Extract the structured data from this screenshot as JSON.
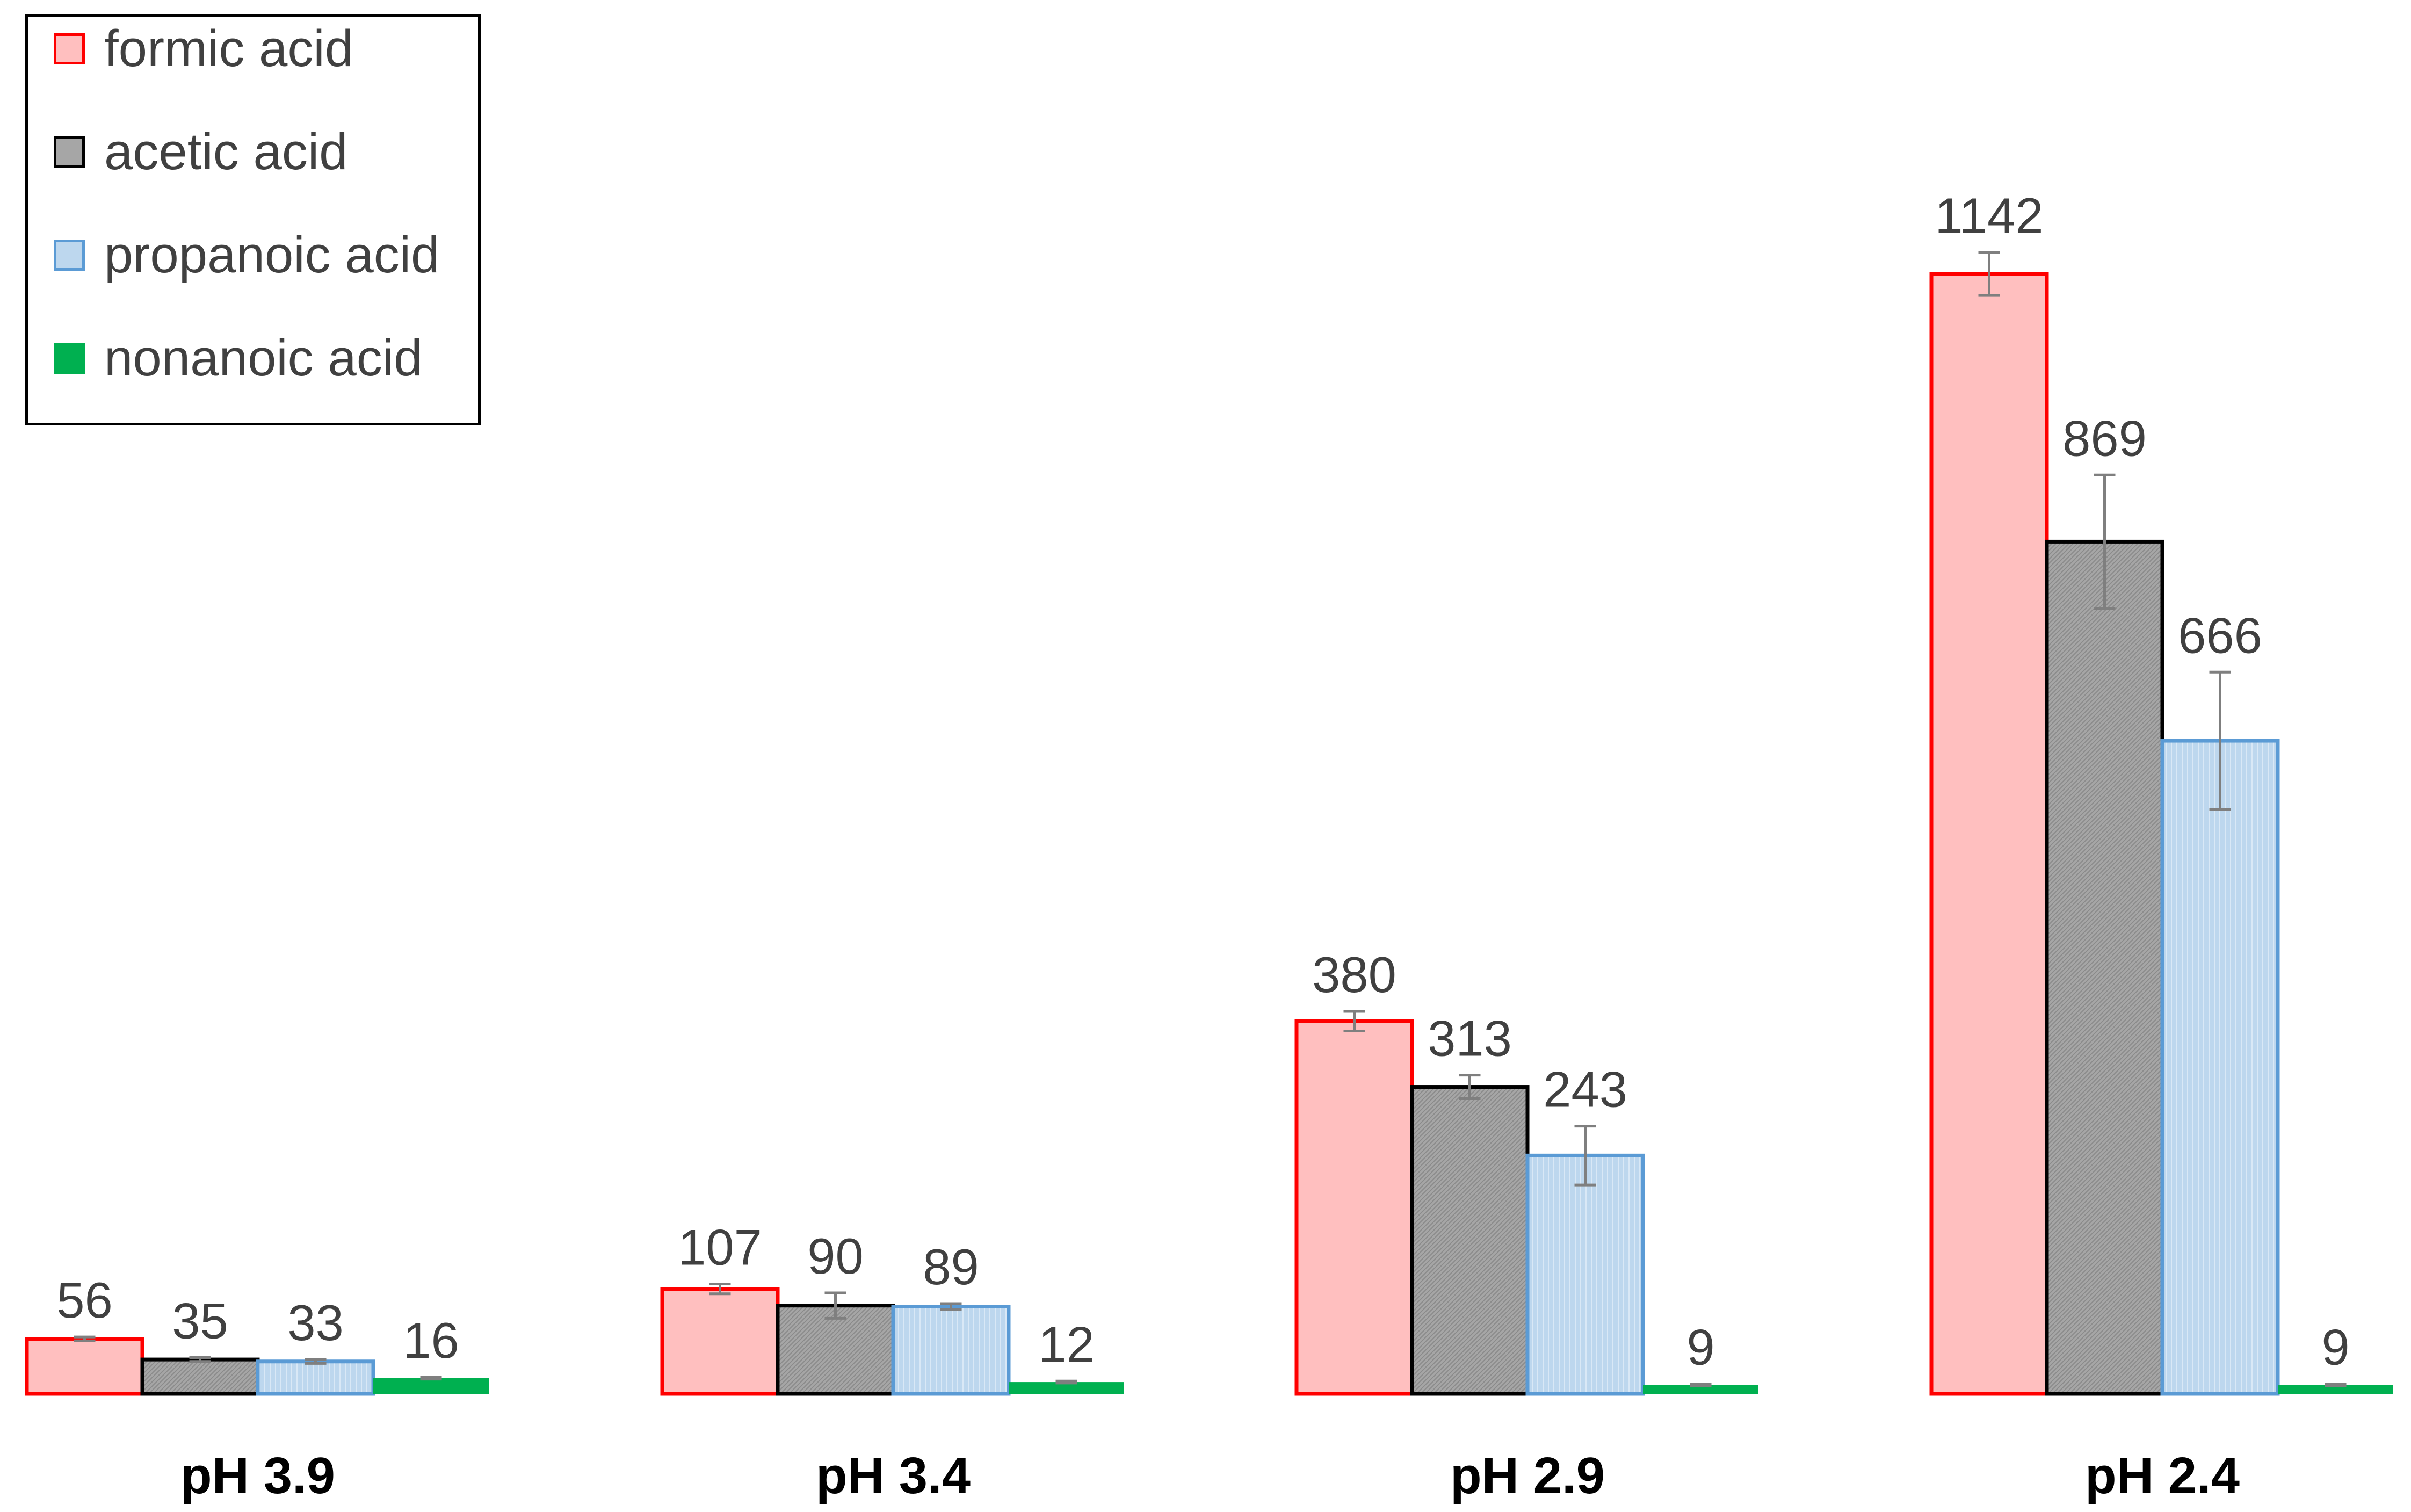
{
  "chart_data": {
    "type": "bar",
    "categories": [
      "pH 3.9",
      "pH 3.4",
      "pH 2.9",
      "pH 2.4"
    ],
    "series": [
      {
        "name": "formic acid",
        "values": [
          56,
          107,
          380,
          1142
        ],
        "errors": [
          2,
          5,
          10,
          22
        ],
        "fill": "#ffbfbf",
        "stroke": "#ff0000"
      },
      {
        "name": "acetic acid",
        "values": [
          35,
          90,
          313,
          869
        ],
        "errors": [
          2,
          13,
          12,
          68
        ],
        "fill": "#a6a6a6",
        "stroke": "#000000"
      },
      {
        "name": "propanoic acid",
        "values": [
          33,
          89,
          243,
          666
        ],
        "errors": [
          2,
          3,
          30,
          70
        ],
        "fill": "#bdd7ee",
        "stroke": "#5b9bd5"
      },
      {
        "name": "nonanoic acid",
        "values": [
          16,
          12,
          9,
          9
        ],
        "errors": [
          1,
          1,
          1,
          1
        ],
        "fill": "#00b050",
        "stroke": "#00b050"
      }
    ],
    "data_labels": [
      [
        "56",
        "107",
        "380",
        "1142"
      ],
      [
        "35",
        "90",
        "313",
        "869"
      ],
      [
        "33",
        "89",
        "243",
        "666"
      ],
      [
        "16",
        "12",
        "9",
        "9"
      ]
    ],
    "ylim": [
      0,
      1250
    ],
    "grid": false,
    "legend_position": "top-left",
    "error_bars": true
  }
}
